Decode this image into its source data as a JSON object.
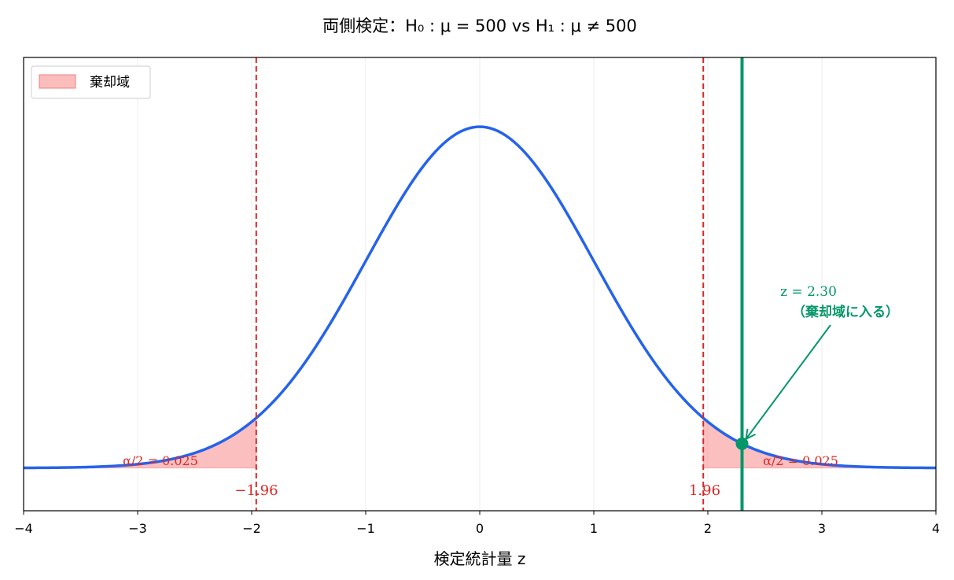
{
  "chart_data": {
    "type": "line",
    "title": "両側検定：H₀ : μ = 500 vs H₁ : μ ≠ 500",
    "xlabel": "検定統計量 z",
    "ylabel": "",
    "xlim": [
      -4,
      4
    ],
    "ylim": [
      -0.05,
      0.48
    ],
    "xticks": [
      -4,
      -3,
      -2,
      -1,
      0,
      1,
      2,
      3,
      4
    ],
    "xtick_labels": [
      "−4",
      "−3",
      "−2",
      "−1",
      "0",
      "1",
      "2",
      "3",
      "4"
    ],
    "grid": "x-only",
    "series": [
      {
        "name": "standard normal pdf",
        "function": "N(0,1) density",
        "color": "#2563eb"
      }
    ],
    "critical_values": [
      -1.96,
      1.96
    ],
    "critical_labels": [
      "−1.96",
      "1.96"
    ],
    "critical_color": "#dc2626",
    "rejection_region": {
      "label": "棄却域",
      "color": "#f87171",
      "alpha_labels": [
        "α/2 = 0.025",
        "α/2 = 0.025"
      ]
    },
    "observed": {
      "z": 2.3,
      "color": "#059669",
      "annotation_line1": "z = 2.30",
      "annotation_line2": "（棄却域に入る）"
    },
    "legend": {
      "placement": "top-left",
      "entries": [
        "棄却域"
      ]
    }
  }
}
